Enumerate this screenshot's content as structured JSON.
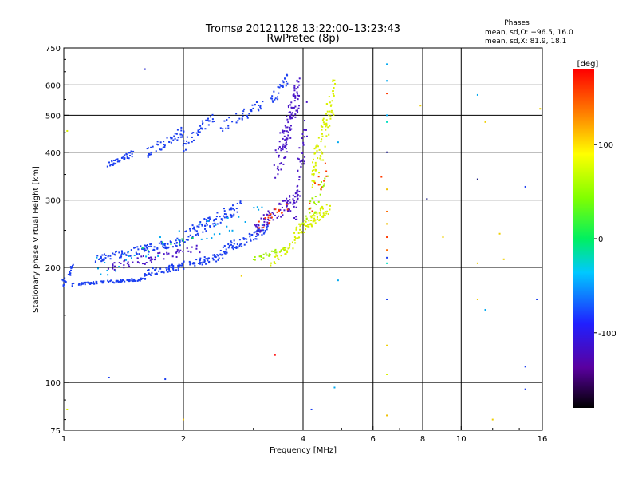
{
  "chart_data": {
    "type": "scatter",
    "title": "Tromsø 20121128 13:22:00–13:23:43",
    "subtitle": "RwPretec (8p)",
    "stats": {
      "heading": "Phases",
      "line_o": "mean, sd,O: −96.5, 16.0",
      "line_x": "mean, sd,X:  81.9, 18.1"
    },
    "xlabel": "Frequency [MHz]",
    "ylabel": "Stationary phase Virtual Height [km]",
    "x_scale": "log",
    "y_scale": "log",
    "xlim": [
      1,
      16
    ],
    "ylim": [
      75,
      750
    ],
    "x_ticks": [
      1,
      2,
      4,
      6,
      8,
      10,
      16
    ],
    "x_tick_labels": [
      "1",
      "2",
      "4",
      "6",
      "8",
      "10",
      "16"
    ],
    "x_grid": [
      2,
      4,
      6,
      8,
      10
    ],
    "y_ticks": [
      75,
      100,
      200,
      300,
      400,
      500,
      600,
      750
    ],
    "y_tick_labels": [
      "75",
      "100",
      "200",
      "300",
      "400",
      "500",
      "600",
      "750"
    ],
    "y_grid": [
      100,
      200,
      300,
      400,
      500,
      600
    ],
    "grid": true,
    "colorbar": {
      "label": "[deg]",
      "range": [
        -180,
        180
      ],
      "ticks": [
        100,
        0,
        -100
      ],
      "tick_labels": [
        "100",
        "0",
        "-100"
      ]
    },
    "series": [
      {
        "color_phase_deg": -100,
        "color": "#1a3ef0",
        "traces": [
          {
            "x_range": [
              1.0,
              1.6
            ],
            "y_range": [
              178,
              188
            ],
            "n": 90
          },
          {
            "x_range": [
              1.0,
              1.05
            ],
            "y_range": [
              178,
              205
            ],
            "n": 20
          },
          {
            "x_range": [
              1.6,
              2.5
            ],
            "y_range": [
              188,
              218
            ],
            "n": 110
          },
          {
            "x_range": [
              2.5,
              3.3
            ],
            "y_range": [
              215,
              260
            ],
            "n": 70
          },
          {
            "x_range": [
              1.2,
              2.0
            ],
            "y_range": [
              205,
              240
            ],
            "n": 110
          },
          {
            "x_range": [
              2.0,
              2.8
            ],
            "y_range": [
              232,
              300
            ],
            "n": 90
          },
          {
            "x_range": [
              1.3,
              1.5
            ],
            "y_range": [
              365,
              405
            ],
            "n": 40
          },
          {
            "x_range": [
              1.6,
              2.0
            ],
            "y_range": [
              380,
              470
            ],
            "n": 50
          },
          {
            "x_range": [
              2.0,
              2.4
            ],
            "y_range": [
              400,
              520
            ],
            "n": 40
          },
          {
            "x_range": [
              2.5,
              3.2
            ],
            "y_range": [
              450,
              560
            ],
            "n": 40
          },
          {
            "x_range": [
              3.3,
              3.7
            ],
            "y_range": [
              520,
              660
            ],
            "n": 30
          }
        ]
      },
      {
        "color_phase_deg": -140,
        "color": "#4a16c8",
        "traces": [
          {
            "x_range": [
              1.3,
              2.2
            ],
            "y_range": [
              195,
              230
            ],
            "n": 60
          },
          {
            "x_range": [
              3.0,
              3.9
            ],
            "y_range": [
              240,
              320
            ],
            "n": 90
          },
          {
            "x_range": [
              3.4,
              3.9
            ],
            "y_range": [
              320,
              660
            ],
            "n": 110
          },
          {
            "x_range": [
              3.8,
              4.1
            ],
            "y_range": [
              240,
              560
            ],
            "n": 40
          }
        ]
      },
      {
        "color_phase_deg": 100,
        "color": "#d8f000",
        "traces": [
          {
            "x_range": [
              3.8,
              4.7
            ],
            "y_range": [
              235,
              300
            ],
            "n": 80
          },
          {
            "x_range": [
              4.2,
              4.8
            ],
            "y_range": [
              300,
              640
            ],
            "n": 90
          },
          {
            "x_range": [
              3.3,
              3.8
            ],
            "y_range": [
              200,
              235
            ],
            "n": 30
          }
        ]
      },
      {
        "color_phase_deg": 70,
        "color": "#9ef000",
        "traces": [
          {
            "x_range": [
              3.0,
              3.6
            ],
            "y_range": [
              205,
              230
            ],
            "n": 25
          },
          {
            "x_range": [
              4.0,
              4.6
            ],
            "y_range": [
              250,
              350
            ],
            "n": 25
          }
        ]
      },
      {
        "color_phase_deg": 160,
        "color": "#ff3a00",
        "traces": [
          {
            "x_range": [
              3.1,
              3.7
            ],
            "y_range": [
              250,
              300
            ],
            "n": 20
          },
          {
            "x_range": [
              4.1,
              4.7
            ],
            "y_range": [
              260,
              420
            ],
            "n": 12
          }
        ]
      },
      {
        "color_phase_deg": -60,
        "color": "#00a8f0",
        "traces": [
          {
            "x_range": [
              1.2,
              3.2
            ],
            "y_range": [
              185,
              300
            ],
            "n": 40
          }
        ]
      },
      {
        "color_phase_deg": 0,
        "color": "#00e060",
        "traces": [
          {
            "x_range": [
              1.5,
              2.2
            ],
            "y_range": [
              215,
              245
            ],
            "n": 8
          }
        ]
      }
    ],
    "scattered_points": [
      {
        "x": 1.6,
        "y": 660,
        "color": "#2a2ad0"
      },
      {
        "x": 1.02,
        "y": 455,
        "color": "#d8f000"
      },
      {
        "x": 1.02,
        "y": 85,
        "color": "#d8f000"
      },
      {
        "x": 1.3,
        "y": 103,
        "color": "#1a3ef0"
      },
      {
        "x": 1.8,
        "y": 102,
        "color": "#1a3ef0"
      },
      {
        "x": 2.0,
        "y": 80,
        "color": "#f0c000"
      },
      {
        "x": 2.8,
        "y": 190,
        "color": "#f0d000"
      },
      {
        "x": 3.4,
        "y": 118,
        "color": "#ff2020"
      },
      {
        "x": 4.2,
        "y": 85,
        "color": "#1a3ef0"
      },
      {
        "x": 4.8,
        "y": 97,
        "color": "#00a8f0"
      },
      {
        "x": 4.9,
        "y": 185,
        "color": "#00a8f0"
      },
      {
        "x": 4.9,
        "y": 425,
        "color": "#00a8f0"
      },
      {
        "x": 6.3,
        "y": 345,
        "color": "#ff3a00"
      },
      {
        "x": 6.5,
        "y": 680,
        "color": "#00a8f0"
      },
      {
        "x": 6.5,
        "y": 615,
        "color": "#00a8f0"
      },
      {
        "x": 6.5,
        "y": 570,
        "color": "#ff3a00"
      },
      {
        "x": 6.5,
        "y": 500,
        "color": "#00a8f0"
      },
      {
        "x": 6.5,
        "y": 480,
        "color": "#00e0c0"
      },
      {
        "x": 6.5,
        "y": 400,
        "color": "#1a1a80"
      },
      {
        "x": 6.5,
        "y": 320,
        "color": "#f0c000"
      },
      {
        "x": 6.5,
        "y": 280,
        "color": "#ff6a00"
      },
      {
        "x": 6.5,
        "y": 260,
        "color": "#f0c000"
      },
      {
        "x": 6.5,
        "y": 240,
        "color": "#ff3a00"
      },
      {
        "x": 6.5,
        "y": 222,
        "color": "#ff6a00"
      },
      {
        "x": 6.5,
        "y": 212,
        "color": "#1a3ef0"
      },
      {
        "x": 6.5,
        "y": 205,
        "color": "#00e0c0"
      },
      {
        "x": 6.5,
        "y": 165,
        "color": "#1a3ef0"
      },
      {
        "x": 6.5,
        "y": 125,
        "color": "#f0d000"
      },
      {
        "x": 6.5,
        "y": 105,
        "color": "#d8f000"
      },
      {
        "x": 6.5,
        "y": 82,
        "color": "#f0c000"
      },
      {
        "x": 7.9,
        "y": 530,
        "color": "#f0d000"
      },
      {
        "x": 8.2,
        "y": 302,
        "color": "#1a1a80"
      },
      {
        "x": 9.0,
        "y": 240,
        "color": "#f0d000"
      },
      {
        "x": 11.0,
        "y": 565,
        "color": "#00a8f0"
      },
      {
        "x": 11.0,
        "y": 340,
        "color": "#1a1a80"
      },
      {
        "x": 11.0,
        "y": 165,
        "color": "#f0d000"
      },
      {
        "x": 11.5,
        "y": 480,
        "color": "#f0d000"
      },
      {
        "x": 11.5,
        "y": 155,
        "color": "#00a8f0"
      },
      {
        "x": 12.0,
        "y": 80,
        "color": "#f0d000"
      },
      {
        "x": 12.5,
        "y": 245,
        "color": "#f0d000"
      },
      {
        "x": 12.8,
        "y": 210,
        "color": "#f0d000"
      },
      {
        "x": 14.5,
        "y": 325,
        "color": "#1a3ef0"
      },
      {
        "x": 14.5,
        "y": 110,
        "color": "#1a3ef0"
      },
      {
        "x": 14.5,
        "y": 96,
        "color": "#1a3ef0"
      },
      {
        "x": 15.5,
        "y": 165,
        "color": "#1a3ef0"
      },
      {
        "x": 15.8,
        "y": 520,
        "color": "#f0d000"
      },
      {
        "x": 11.0,
        "y": 205,
        "color": "#f0d000"
      }
    ]
  }
}
